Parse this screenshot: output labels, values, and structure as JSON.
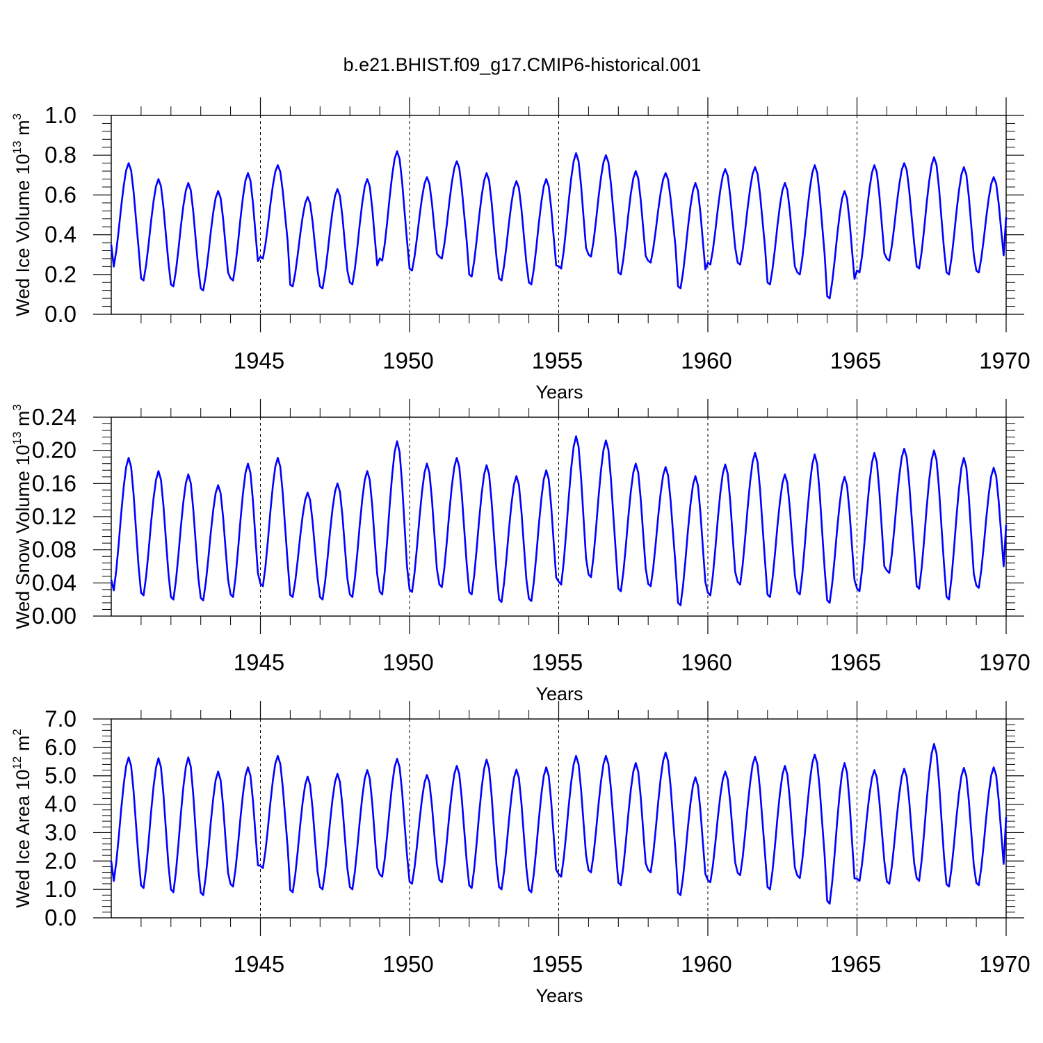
{
  "title": "b.e21.BHIST.f09_g17.CMIP6-historical.001",
  "colors": {
    "line": "#0000ff",
    "axis": "#000000",
    "grid": "#000000"
  },
  "chart_data": [
    {
      "type": "line",
      "ylabel": {
        "main": "Wed Ice Volume 10",
        "sup": "13",
        "unit": " m",
        "unit_sup": "3"
      },
      "xlabel": "Years",
      "xlim": [
        1940.0,
        1970.0
      ],
      "ylim": [
        0.0,
        1.0
      ],
      "yticks": [
        0.0,
        0.2,
        0.4,
        0.6,
        0.8,
        1.0
      ],
      "ytick_labels": [
        "0.0",
        "0.2",
        "0.4",
        "0.6",
        "0.8",
        "1.0"
      ],
      "xticks": [
        1945,
        1950,
        1955,
        1960,
        1965,
        1970
      ],
      "xtick_labels": [
        "1945",
        "1950",
        "1955",
        "1960",
        "1965",
        "1970"
      ],
      "series": [
        {
          "name": "Wed Ice Volume",
          "frequency": "monthly",
          "annual_min": [
            0.24,
            0.17,
            0.14,
            0.12,
            0.17,
            0.28,
            0.14,
            0.13,
            0.15,
            0.27,
            0.22,
            0.28,
            0.19,
            0.17,
            0.15,
            0.23,
            0.29,
            0.2,
            0.26,
            0.13,
            0.25,
            0.25,
            0.15,
            0.2,
            0.08,
            0.21,
            0.27,
            0.23,
            0.2,
            0.21
          ],
          "annual_max": [
            0.76,
            0.68,
            0.66,
            0.62,
            0.71,
            0.75,
            0.59,
            0.63,
            0.68,
            0.82,
            0.69,
            0.77,
            0.71,
            0.67,
            0.68,
            0.81,
            0.8,
            0.72,
            0.71,
            0.66,
            0.73,
            0.74,
            0.66,
            0.75,
            0.62,
            0.75,
            0.76,
            0.79,
            0.74,
            0.69
          ],
          "start_value": 0.35,
          "end_value": 0.49
        }
      ]
    },
    {
      "type": "line",
      "ylabel": {
        "main": "Wed Snow Volume 10",
        "sup": "13",
        "unit": " m",
        "unit_sup": "3"
      },
      "xlabel": "Years",
      "xlim": [
        1940.0,
        1970.0
      ],
      "ylim": [
        0.0,
        0.24
      ],
      "yticks": [
        0.0,
        0.04,
        0.08,
        0.12,
        0.16,
        0.2,
        0.24
      ],
      "ytick_labels": [
        "0.00",
        "0.04",
        "0.08",
        "0.12",
        "0.16",
        "0.20",
        "0.24"
      ],
      "xticks": [
        1945,
        1950,
        1955,
        1960,
        1965,
        1970
      ],
      "xtick_labels": [
        "1945",
        "1950",
        "1955",
        "1960",
        "1965",
        "1970"
      ],
      "series": [
        {
          "name": "Wed Snow Volume",
          "frequency": "monthly",
          "annual_min": [
            0.031,
            0.025,
            0.02,
            0.019,
            0.023,
            0.036,
            0.023,
            0.02,
            0.023,
            0.026,
            0.029,
            0.035,
            0.026,
            0.017,
            0.018,
            0.038,
            0.047,
            0.03,
            0.036,
            0.013,
            0.025,
            0.038,
            0.023,
            0.026,
            0.016,
            0.03,
            0.052,
            0.033,
            0.02,
            0.034
          ],
          "annual_max": [
            0.191,
            0.175,
            0.171,
            0.158,
            0.184,
            0.191,
            0.149,
            0.16,
            0.175,
            0.211,
            0.184,
            0.191,
            0.182,
            0.169,
            0.176,
            0.217,
            0.212,
            0.184,
            0.18,
            0.169,
            0.183,
            0.197,
            0.171,
            0.195,
            0.168,
            0.197,
            0.202,
            0.2,
            0.191,
            0.179
          ],
          "start_value": 0.044,
          "end_value": 0.11
        }
      ]
    },
    {
      "type": "line",
      "ylabel": {
        "main": "Wed Ice Area 10",
        "sup": "12",
        "unit": " m",
        "unit_sup": "2"
      },
      "xlabel": "Years",
      "xlim": [
        1940.0,
        1970.0
      ],
      "ylim": [
        0.0,
        7.0
      ],
      "yticks": [
        0.0,
        1.0,
        2.0,
        3.0,
        4.0,
        5.0,
        6.0,
        7.0
      ],
      "ytick_labels": [
        "0.0",
        "1.0",
        "2.0",
        "3.0",
        "4.0",
        "5.0",
        "6.0",
        "7.0"
      ],
      "xticks": [
        1945,
        1950,
        1955,
        1960,
        1965,
        1970
      ],
      "xtick_labels": [
        "1945",
        "1950",
        "1955",
        "1960",
        "1965",
        "1970"
      ],
      "series": [
        {
          "name": "Wed Ice Area",
          "frequency": "monthly",
          "annual_min": [
            1.3,
            1.05,
            0.9,
            0.8,
            1.1,
            1.75,
            0.9,
            1.0,
            1.0,
            1.45,
            1.2,
            1.25,
            1.05,
            1.0,
            0.9,
            1.45,
            1.6,
            1.15,
            1.6,
            0.8,
            1.25,
            1.5,
            1.0,
            1.4,
            0.5,
            1.3,
            1.2,
            1.3,
            1.1,
            1.15
          ],
          "annual_max": [
            5.65,
            5.62,
            5.65,
            5.15,
            5.3,
            5.7,
            4.97,
            5.07,
            5.2,
            5.6,
            5.03,
            5.35,
            5.57,
            5.22,
            5.3,
            5.7,
            5.7,
            5.45,
            5.82,
            4.95,
            5.15,
            5.67,
            5.35,
            5.75,
            5.45,
            5.2,
            5.25,
            6.12,
            5.28,
            5.3
          ],
          "start_value": 2.0,
          "end_value": 3.55
        }
      ]
    }
  ]
}
